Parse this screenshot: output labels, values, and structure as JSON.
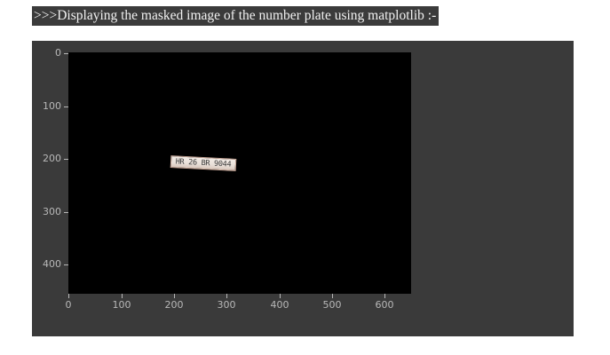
{
  "caption": ">>>Displaying the masked image of the number plate  using matplotlib :-",
  "plot": {
    "plate_text": "HR 26 BR 9044",
    "y_ticks": [
      "0",
      "100",
      "200",
      "300",
      "400"
    ],
    "x_ticks": [
      "0",
      "100",
      "200",
      "300",
      "400",
      "500",
      "600"
    ],
    "colors": {
      "panel_bg": "#3a3a3a",
      "image_bg": "#000000",
      "tick_color": "#b8b8b8"
    }
  }
}
